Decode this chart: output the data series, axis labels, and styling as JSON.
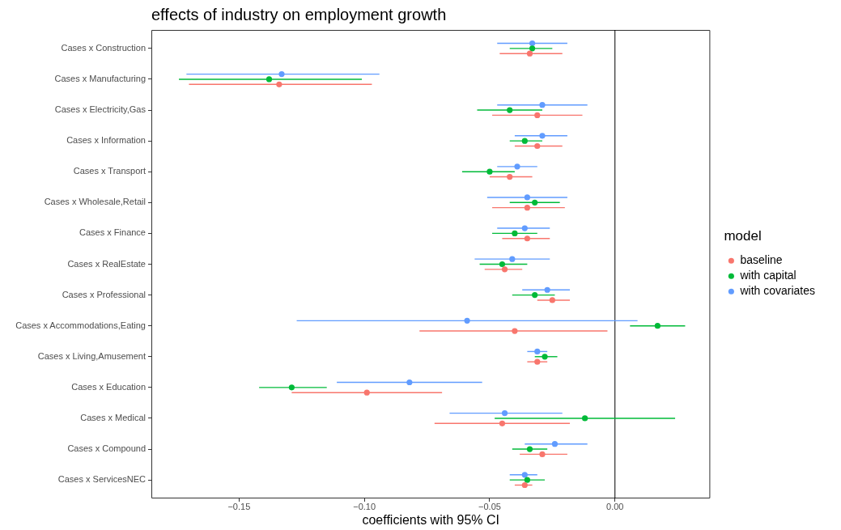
{
  "chart_data": {
    "type": "scatter",
    "orientation": "horizontal",
    "title": "effects of industry on employment growth",
    "xlabel": "coefficients with 95% CI",
    "legend_title": "model",
    "legend": "right",
    "marker": "circle",
    "categories": [
      "Cases x Construction",
      "Cases x Manufacturing",
      "Cases x Electricity,Gas",
      "Cases x Information",
      "Cases x Transport",
      "Cases x Wholesale,Retail",
      "Cases x Finance",
      "Cases x RealEstate",
      "Cases x Professional",
      "Cases x Accommodations,Eating",
      "Cases x Living,Amusement",
      "Cases x Education",
      "Cases x Medical",
      "Cases x Compound",
      "Cases x ServicesNEC"
    ],
    "xlim": [
      -0.185,
      0.038
    ],
    "xticks": [
      {
        "value": -0.15,
        "label": "−0.15"
      },
      {
        "value": -0.1,
        "label": "−0.10"
      },
      {
        "value": -0.05,
        "label": "−0.05"
      },
      {
        "value": 0,
        "label": "0.00"
      }
    ],
    "ref_lines": [
      {
        "axis": "x",
        "value": 0,
        "color": "#000000"
      }
    ],
    "series": [
      {
        "name": "baseline",
        "color": "#f8766d",
        "values": [
          -0.034,
          -0.134,
          -0.031,
          -0.031,
          -0.042,
          -0.035,
          -0.035,
          -0.044,
          -0.025,
          -0.04,
          -0.031,
          -0.099,
          -0.045,
          -0.029,
          -0.036
        ],
        "errors": [
          [
            -0.046,
            -0.021
          ],
          [
            -0.17,
            -0.097
          ],
          [
            -0.049,
            -0.013
          ],
          [
            -0.04,
            -0.021
          ],
          [
            -0.05,
            -0.033
          ],
          [
            -0.049,
            -0.02
          ],
          [
            -0.045,
            -0.026
          ],
          [
            -0.052,
            -0.037
          ],
          [
            -0.031,
            -0.018
          ],
          [
            -0.078,
            -0.003
          ],
          [
            -0.035,
            -0.027
          ],
          [
            -0.129,
            -0.069
          ],
          [
            -0.072,
            -0.018
          ],
          [
            -0.038,
            -0.019
          ],
          [
            -0.04,
            -0.033
          ]
        ]
      },
      {
        "name": "with capital",
        "color": "#00ba38",
        "values": [
          -0.033,
          -0.138,
          -0.042,
          -0.036,
          -0.05,
          -0.032,
          -0.04,
          -0.045,
          -0.032,
          0.017,
          -0.028,
          -0.129,
          -0.012,
          -0.034,
          -0.035
        ],
        "errors": [
          [
            -0.042,
            -0.025
          ],
          [
            -0.174,
            -0.101
          ],
          [
            -0.055,
            -0.029
          ],
          [
            -0.042,
            -0.029
          ],
          [
            -0.061,
            -0.04
          ],
          [
            -0.042,
            -0.022
          ],
          [
            -0.049,
            -0.031
          ],
          [
            -0.054,
            -0.035
          ],
          [
            -0.041,
            -0.024
          ],
          [
            0.006,
            0.028
          ],
          [
            -0.032,
            -0.023
          ],
          [
            -0.142,
            -0.115
          ],
          [
            -0.048,
            0.024
          ],
          [
            -0.041,
            -0.027
          ],
          [
            -0.042,
            -0.028
          ]
        ]
      },
      {
        "name": "with covariates",
        "color": "#619cff",
        "values": [
          -0.033,
          -0.133,
          -0.029,
          -0.029,
          -0.039,
          -0.035,
          -0.036,
          -0.041,
          -0.027,
          -0.059,
          -0.031,
          -0.082,
          -0.044,
          -0.024,
          -0.036
        ],
        "errors": [
          [
            -0.047,
            -0.019
          ],
          [
            -0.171,
            -0.094
          ],
          [
            -0.047,
            -0.011
          ],
          [
            -0.04,
            -0.019
          ],
          [
            -0.047,
            -0.031
          ],
          [
            -0.051,
            -0.019
          ],
          [
            -0.047,
            -0.026
          ],
          [
            -0.056,
            -0.026
          ],
          [
            -0.037,
            -0.018
          ],
          [
            -0.127,
            0.009
          ],
          [
            -0.035,
            -0.027
          ],
          [
            -0.111,
            -0.053
          ],
          [
            -0.066,
            -0.021
          ],
          [
            -0.036,
            -0.011
          ],
          [
            -0.042,
            -0.031
          ]
        ]
      }
    ]
  }
}
